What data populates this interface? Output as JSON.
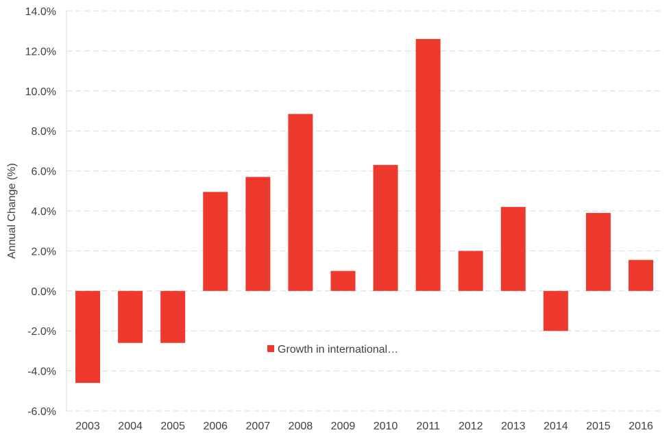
{
  "chart_data": {
    "type": "bar",
    "title": "",
    "xlabel": "",
    "ylabel": "Annual Change (%)",
    "categories": [
      "2003",
      "2004",
      "2005",
      "2006",
      "2007",
      "2008",
      "2009",
      "2010",
      "2011",
      "2012",
      "2013",
      "2014",
      "2015",
      "2016"
    ],
    "series": [
      {
        "name": "Growth in international…",
        "values": [
          -4.6,
          -2.6,
          -2.6,
          4.95,
          5.7,
          8.85,
          1.0,
          6.3,
          12.6,
          2.0,
          4.2,
          -2.0,
          3.9,
          1.55
        ],
        "color": "#ee3a2e"
      }
    ],
    "ylim": [
      -6,
      14
    ],
    "yticks": [
      -6,
      -4,
      -2,
      0,
      2,
      4,
      6,
      8,
      10,
      12,
      14
    ],
    "ytick_labels": [
      "-6.0%",
      "-4.0%",
      "-2.0%",
      "0.0%",
      "2.0%",
      "4.0%",
      "6.0%",
      "8.0%",
      "10.0%",
      "12.0%",
      "14.0%"
    ],
    "grid": true,
    "grid_style": "dashed",
    "legend_position": "inside-bottom-center"
  }
}
